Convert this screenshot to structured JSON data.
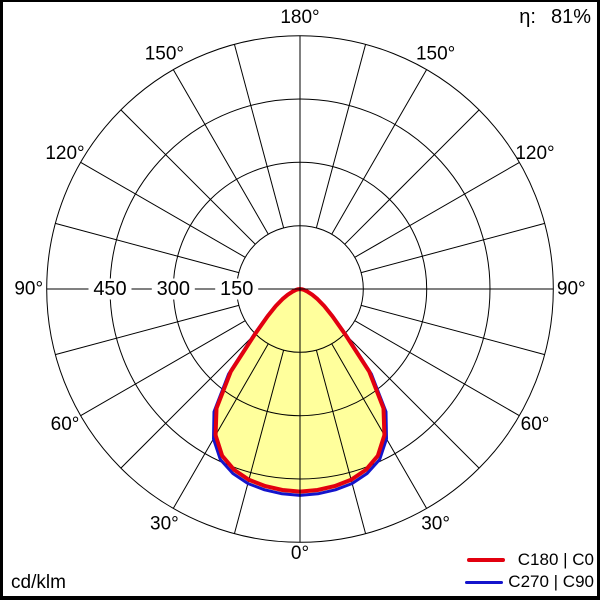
{
  "header": {
    "efficiency_label": "η:",
    "efficiency_value": "81%"
  },
  "footer": {
    "units_label": "cd/klm"
  },
  "legend": {
    "position": "bottom-right",
    "items": [
      {
        "label": "C180 | C0",
        "color": "#e2000f"
      },
      {
        "label": "C270 | C90",
        "color": "#1414cc"
      }
    ]
  },
  "chart_data": {
    "type": "line",
    "subtype": "polar-photometric-luminous-intensity",
    "units": "cd/klm",
    "efficiency_label": "η:",
    "efficiency_percent": 81,
    "grid": true,
    "legend_position": "bottom-right",
    "fill_color": "#ffff9c",
    "grid_color": "#000000",
    "background_color": "#ffffff",
    "radial_axis": {
      "rings": [
        150,
        300,
        450,
        600
      ],
      "labeled_rings": [
        "150",
        "300",
        "450"
      ],
      "max": 600
    },
    "angular_axis": {
      "grid_step_deg": 15,
      "label_step_deg": 30,
      "labels": [
        "0°",
        "30°",
        "60°",
        "90°",
        "120°",
        "150°",
        "180°"
      ]
    },
    "gamma_deg": [
      0,
      5,
      10,
      15,
      20,
      25,
      30,
      35,
      40,
      45,
      50,
      55,
      60,
      65,
      70,
      75,
      80,
      85,
      90
    ],
    "series": [
      {
        "name": "C180 | C0",
        "color": "#e2000f",
        "stroke_width": 4,
        "values": [
          480,
          478,
          474,
          468,
          456,
          436,
          400,
          345,
          255,
          150,
          100,
          70,
          48,
          32,
          20,
          12,
          6,
          2,
          0
        ]
      },
      {
        "name": "C270 | C90",
        "color": "#1414cc",
        "stroke_width": 3,
        "values": [
          489,
          487,
          483,
          477,
          465,
          446,
          410,
          355,
          263,
          156,
          104,
          73,
          50,
          33,
          21,
          12,
          6,
          2,
          0
        ]
      }
    ]
  }
}
